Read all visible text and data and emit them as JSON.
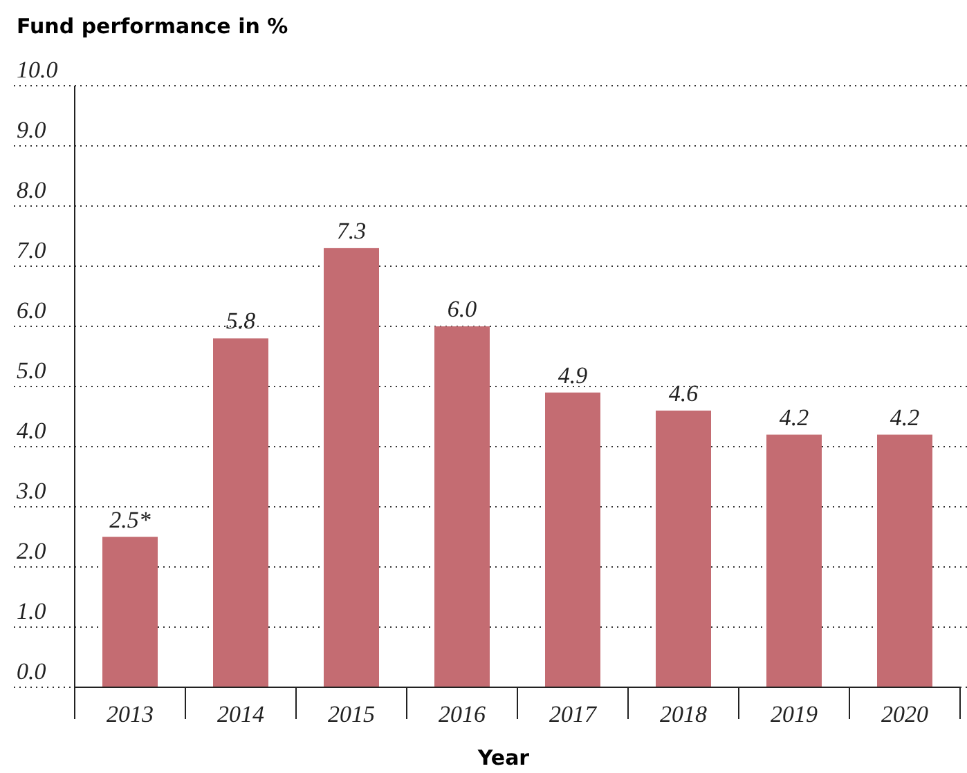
{
  "chart_data": {
    "type": "bar",
    "title": "Fund performance in %",
    "xlabel": "Year",
    "categories": [
      "2013",
      "2014",
      "2015",
      "2016",
      "2017",
      "2018",
      "2019",
      "2020"
    ],
    "values": [
      2.5,
      5.8,
      7.3,
      6.0,
      4.9,
      4.6,
      4.2,
      4.2
    ],
    "value_labels": [
      "2.5*",
      "5.8",
      "7.3",
      "6.0",
      "4.9",
      "4.6",
      "4.2",
      "4.2"
    ],
    "color": "#c46c72",
    "ylim": [
      0,
      10
    ],
    "yticks": [
      {
        "value": 0,
        "label": "0.0"
      },
      {
        "value": 1,
        "label": "1.0"
      },
      {
        "value": 2,
        "label": "2.0"
      },
      {
        "value": 3,
        "label": "3.0"
      },
      {
        "value": 4,
        "label": "4.0"
      },
      {
        "value": 5,
        "label": "5.0"
      },
      {
        "value": 6,
        "label": "6.0"
      },
      {
        "value": 7,
        "label": "7.0"
      },
      {
        "value": 8,
        "label": "8.0"
      },
      {
        "value": 9,
        "label": "9.0"
      },
      {
        "value": 10,
        "label": "10.0"
      }
    ],
    "grid": "y"
  }
}
